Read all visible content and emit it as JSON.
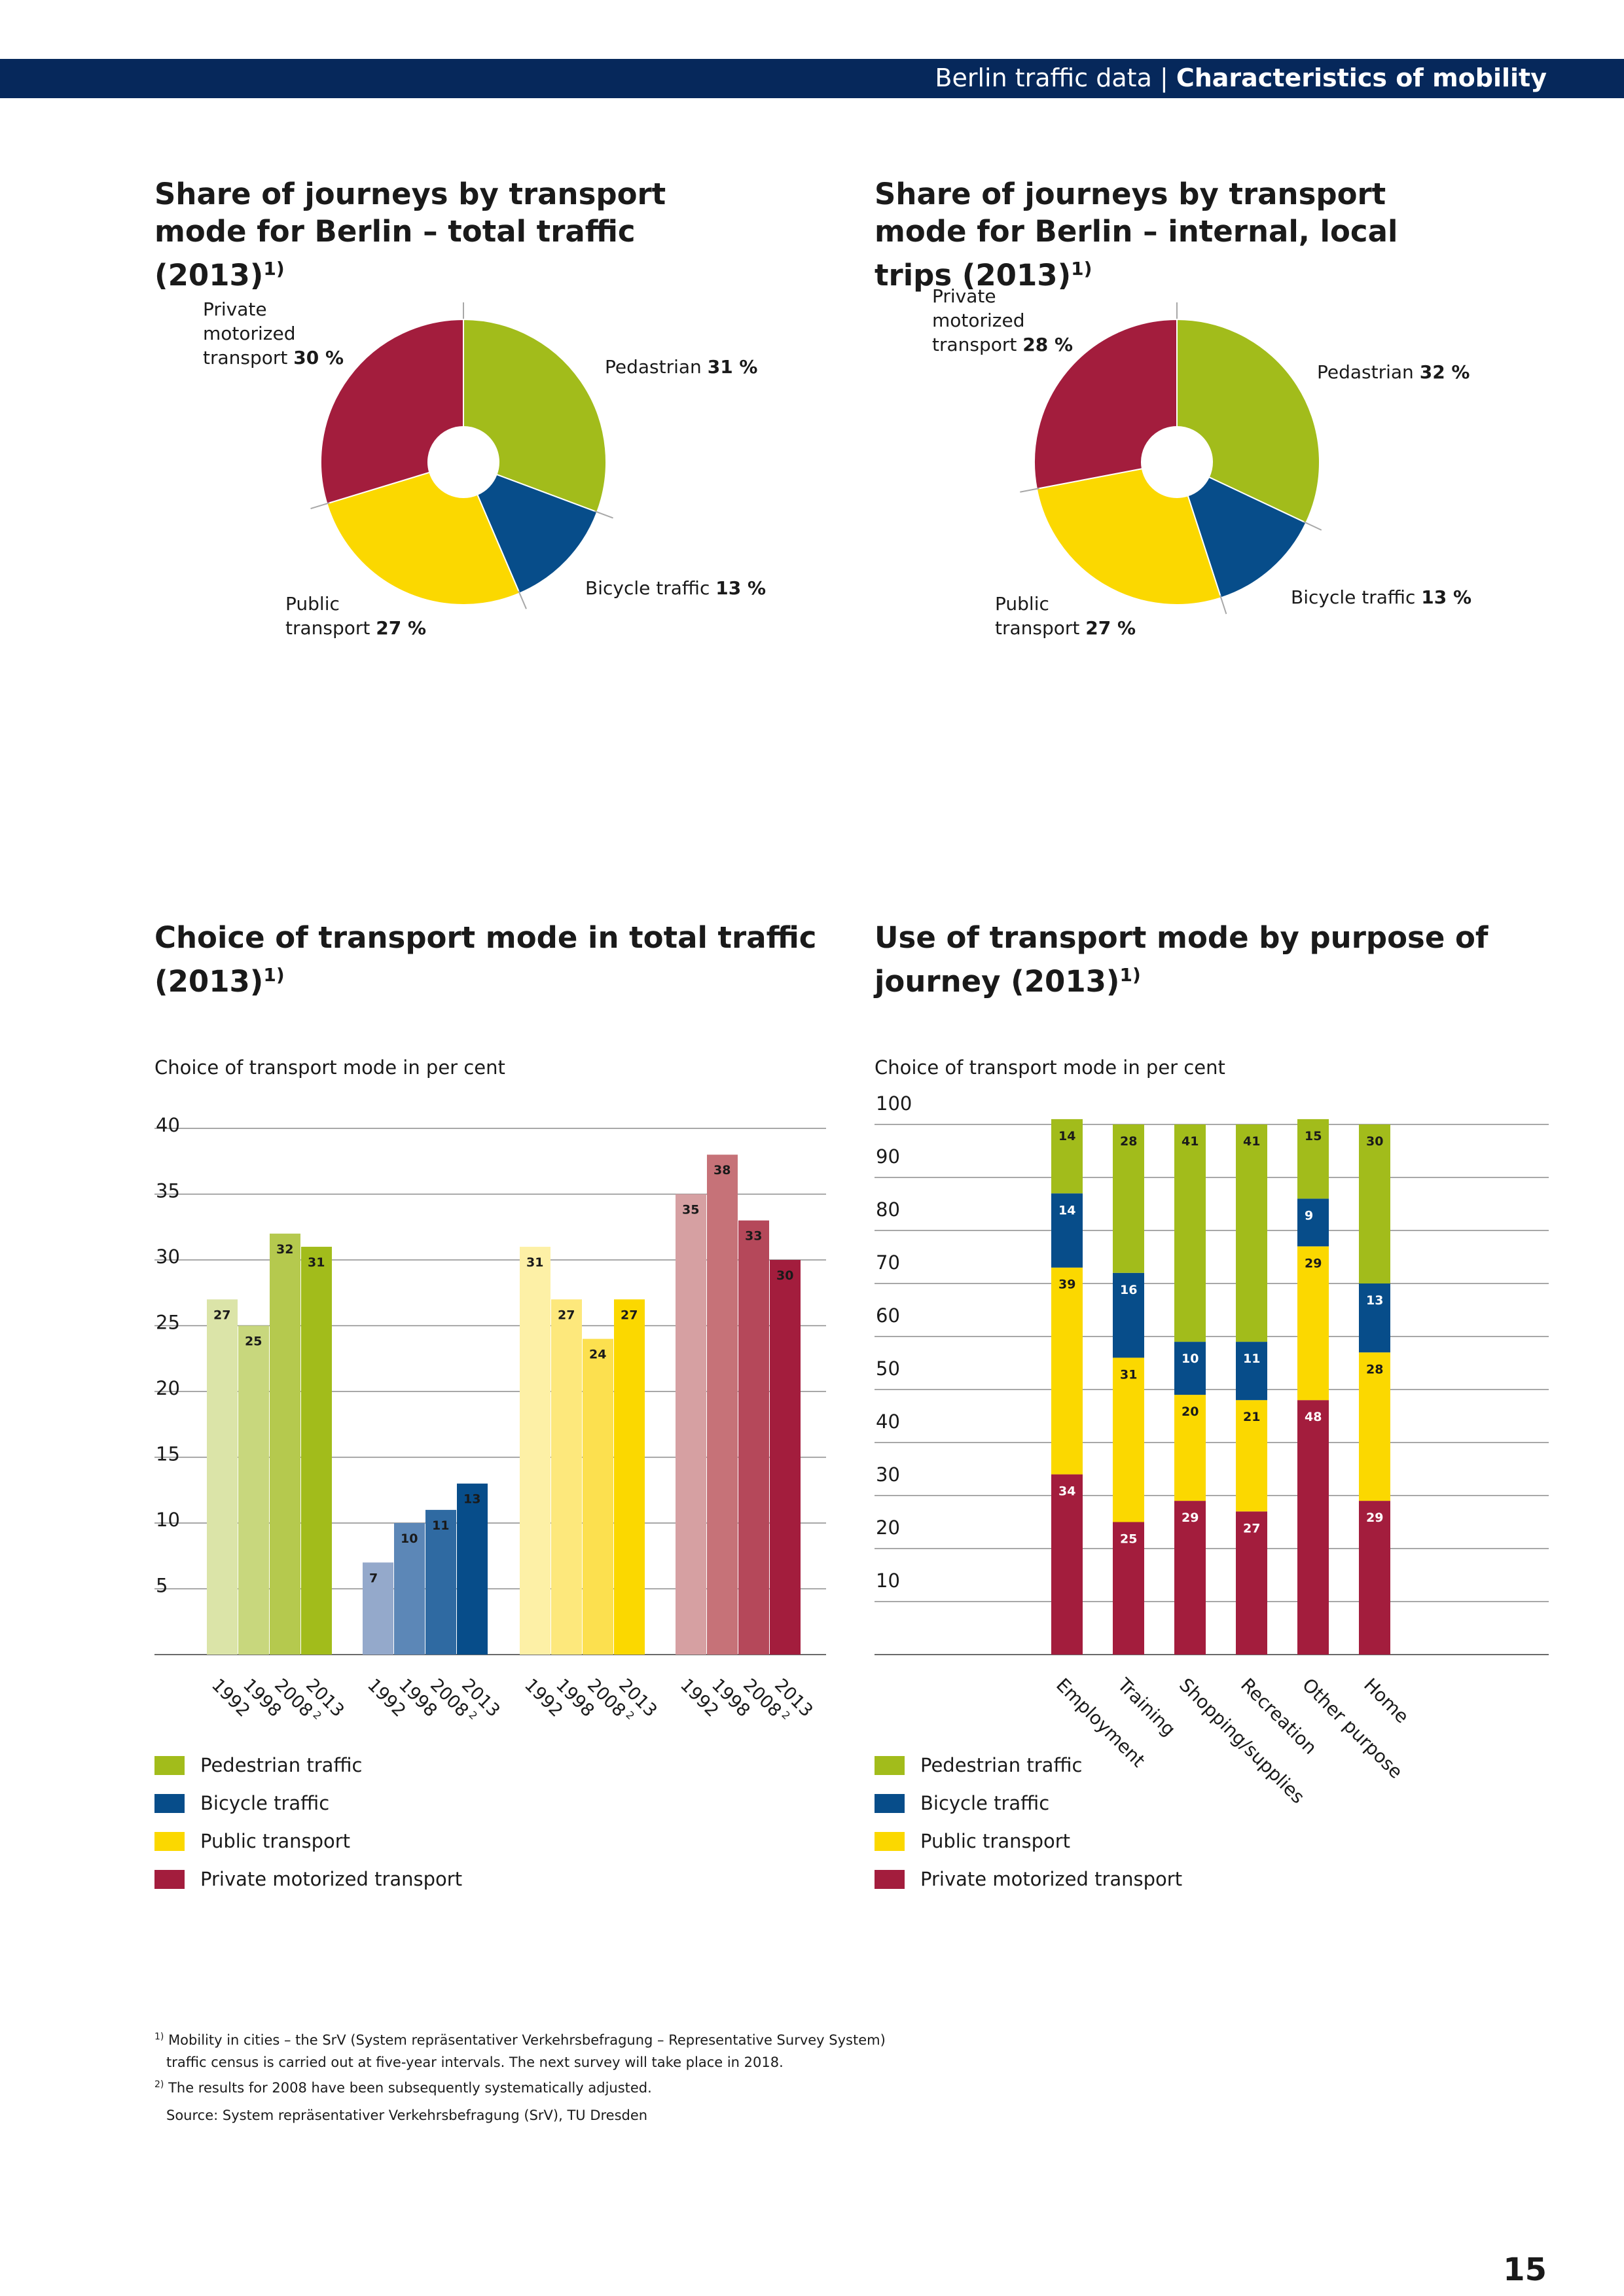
{
  "header": {
    "section": "Berlin traffic data",
    "separator": " | ",
    "chapter": "Characteristics of mobility"
  },
  "colors": {
    "pedestrian": "#a2bc1b",
    "bicycle": "#074d8a",
    "public_transport": "#fbd800",
    "private_motorized": "#a31d3d",
    "header_bar": "#06285b"
  },
  "panels": {
    "pie_total_title": "Share of journeys by transport mode for Berlin – total traffic (2013)",
    "pie_local_title": "Share of journeys by transport mode for Berlin – internal, local trips (2013)",
    "bar_mode_title": "Choice of transport mode in total traffic (2013)",
    "bar_purpose_title": "Use of transport mode by purpose of journey (2013)",
    "footnote_ref": "1)",
    "bar_mode_subtitle": "Choice of transport mode in per cent",
    "bar_purpose_subtitle": "Choice of transport mode in per cent"
  },
  "chart_data": [
    {
      "type": "pie",
      "title": "Share of journeys by transport mode for Berlin – total traffic (2013)",
      "slices": [
        {
          "label": "Pedastrian",
          "value": 31,
          "display": "31 %",
          "color": "#a2bc1b"
        },
        {
          "label": "Bicycle traffic",
          "value": 13,
          "display": "13 %",
          "color": "#074d8a"
        },
        {
          "label": "Public transport",
          "value": 27,
          "display": "27 %",
          "color": "#fbd800"
        },
        {
          "label": "Private motorized transport",
          "value": 30,
          "display": "30 %",
          "color": "#a31d3d"
        }
      ]
    },
    {
      "type": "pie",
      "title": "Share of journeys by transport mode for Berlin – internal, local trips (2013)",
      "slices": [
        {
          "label": "Pedastrian",
          "value": 32,
          "display": "32 %",
          "color": "#a2bc1b"
        },
        {
          "label": "Bicycle traffic",
          "value": 13,
          "display": "13 %",
          "color": "#074d8a"
        },
        {
          "label": "Public transport",
          "value": 27,
          "display": "27 %",
          "color": "#fbd800"
        },
        {
          "label": "Private motorized transport",
          "value": 28,
          "display": "28 %",
          "color": "#a31d3d"
        }
      ]
    },
    {
      "type": "bar",
      "title": "Choice of transport mode in total traffic (2013)",
      "subtitle": "Choice of transport mode in per cent",
      "ylim": [
        0,
        40
      ],
      "yticks": [
        5,
        10,
        15,
        20,
        25,
        30,
        35,
        40
      ],
      "grid": true,
      "categories": [
        "1992",
        "1998",
        "2008",
        "2013"
      ],
      "footnote_marks": [
        "",
        "",
        "2",
        ""
      ],
      "series": [
        {
          "name": "Pedestrian traffic",
          "values": [
            27,
            25,
            32,
            31
          ],
          "colors": [
            "#dbe4a8",
            "#c8d77d",
            "#b5c94e",
            "#a2bc1b"
          ]
        },
        {
          "name": "Bicycle traffic",
          "values": [
            7,
            10,
            11,
            13
          ],
          "colors": [
            "#94a9cb",
            "#5c87b7",
            "#2f6aa2",
            "#074d8a"
          ]
        },
        {
          "name": "Public transport",
          "values": [
            31,
            27,
            24,
            27
          ],
          "colors": [
            "#fdf0a6",
            "#fde87c",
            "#fce04f",
            "#fbd800"
          ]
        },
        {
          "name": "Private motorized transport",
          "values": [
            35,
            38,
            33,
            30
          ],
          "colors": [
            "#d6a0a2",
            "#c67278",
            "#b5485a",
            "#a31d3d"
          ]
        }
      ],
      "legend_position": "bottom-left"
    },
    {
      "type": "bar",
      "stacked": true,
      "title": "Use of transport mode by purpose of journey (2013)",
      "subtitle": "Choice of transport mode in per cent",
      "ylim": [
        0,
        100
      ],
      "yticks": [
        10,
        20,
        30,
        40,
        50,
        60,
        70,
        80,
        90,
        100
      ],
      "grid": true,
      "categories": [
        "Employment",
        "Training",
        "Shopping/supplies",
        "Recreation",
        "Other purpose",
        "Home"
      ],
      "series": [
        {
          "name": "Private motorized transport",
          "values": [
            34,
            25,
            29,
            27,
            48,
            29
          ],
          "color": "#a31d3d"
        },
        {
          "name": "Public transport",
          "values": [
            39,
            31,
            20,
            21,
            29,
            28
          ],
          "color": "#fbd800"
        },
        {
          "name": "Bicycle traffic",
          "values": [
            14,
            16,
            10,
            11,
            9,
            13
          ],
          "color": "#074d8a"
        },
        {
          "name": "Pedestrian traffic",
          "values": [
            14,
            28,
            41,
            41,
            15,
            30
          ],
          "color": "#a2bc1b"
        }
      ],
      "legend_position": "bottom-left"
    }
  ],
  "legend": [
    {
      "label": "Pedestrian traffic",
      "color": "#a2bc1b"
    },
    {
      "label": "Bicycle traffic",
      "color": "#074d8a"
    },
    {
      "label": "Public transport",
      "color": "#fbd800"
    },
    {
      "label": "Private motorized transport",
      "color": "#a31d3d"
    }
  ],
  "footnotes": {
    "note1_mark": "1)",
    "note1_line1": "Mobility in cities – the SrV (System repräsentativer Verkehrsbefragung – Representative Survey System)",
    "note1_line2": "traffic census is carried out at five-year intervals. The next survey will take place in 2018.",
    "note2_mark": "2)",
    "note2": "The results for 2008 have been subsequently systematically adjusted.",
    "source": "Source: System repräsentativer Verkehrsbefragung (SrV), TU Dresden"
  },
  "page_number": "15"
}
